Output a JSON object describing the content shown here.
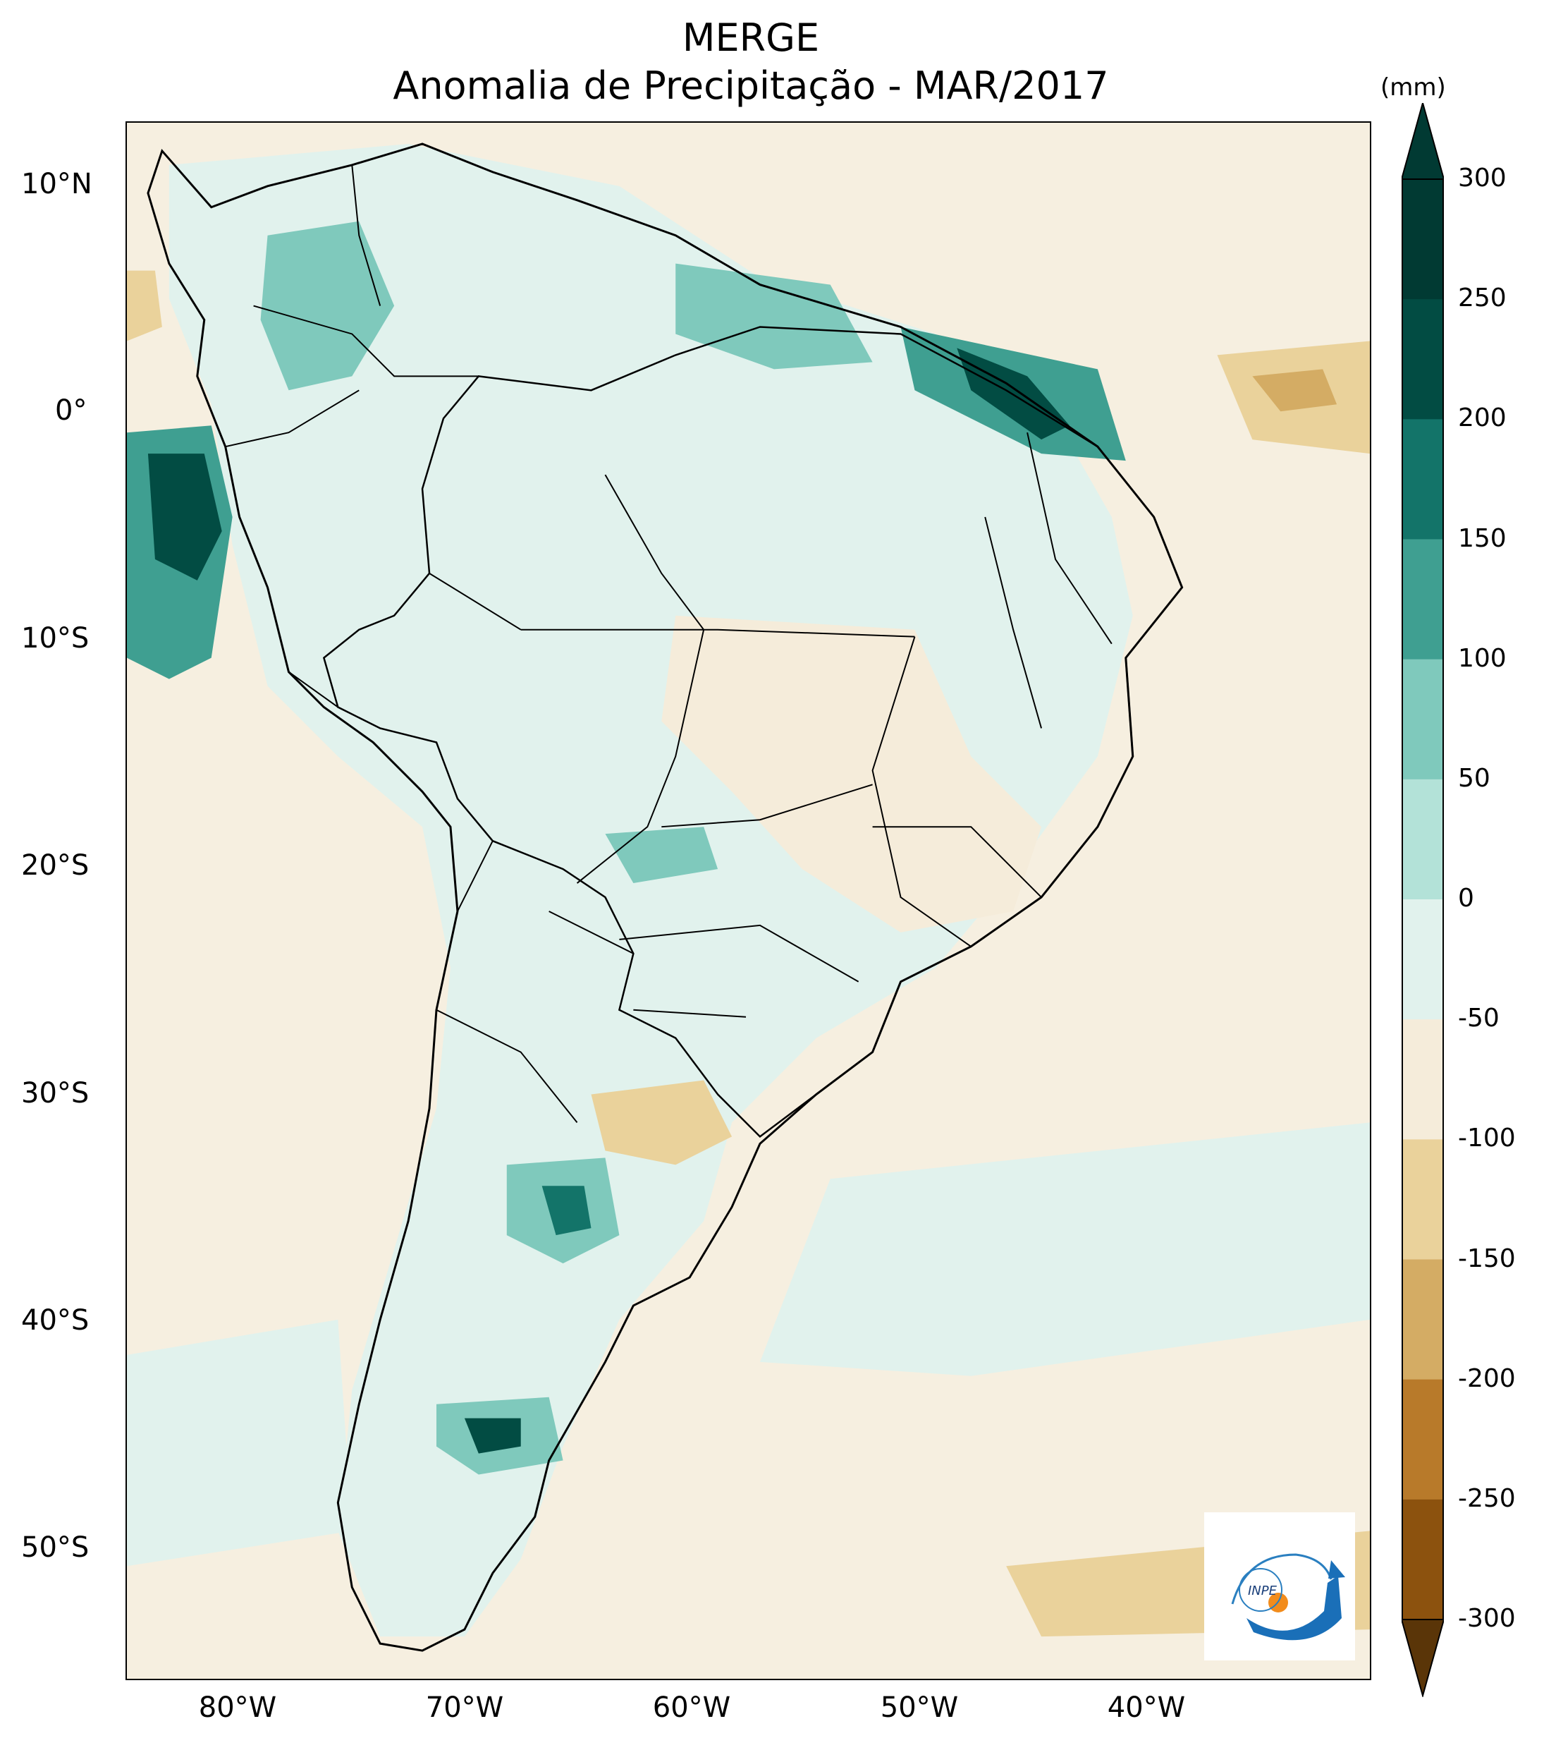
{
  "title_line1": "MERGE",
  "title_line2": "Anomalia de Precipitação - MAR/2017",
  "colorbar": {
    "unit": "(mm)",
    "levels": [
      -300,
      -250,
      -200,
      -150,
      -100,
      -50,
      0,
      50,
      100,
      150,
      200,
      250,
      300
    ],
    "tick_labels": [
      "300",
      "250",
      "200",
      "150",
      "100",
      "50",
      "0",
      "-50",
      "-100",
      "-150",
      "-200",
      "-250",
      "-300"
    ],
    "colors": [
      "#5a3508",
      "#8c520e",
      "#b87a2a",
      "#d4ac64",
      "#ead29b",
      "#f5ecda",
      "#e1f2ed",
      "#b3e2d8",
      "#7fc9bc",
      "#3f9f91",
      "#137469",
      "#024c43",
      "#013a33"
    ]
  },
  "axes": {
    "lat_labels": [
      "10°N",
      "0°",
      "10°S",
      "20°S",
      "30°S",
      "40°S",
      "50°S"
    ],
    "lon_labels": [
      "80°W",
      "70°W",
      "60°W",
      "50°W",
      "40°W"
    ]
  },
  "logo": {
    "text": "INPE"
  }
}
